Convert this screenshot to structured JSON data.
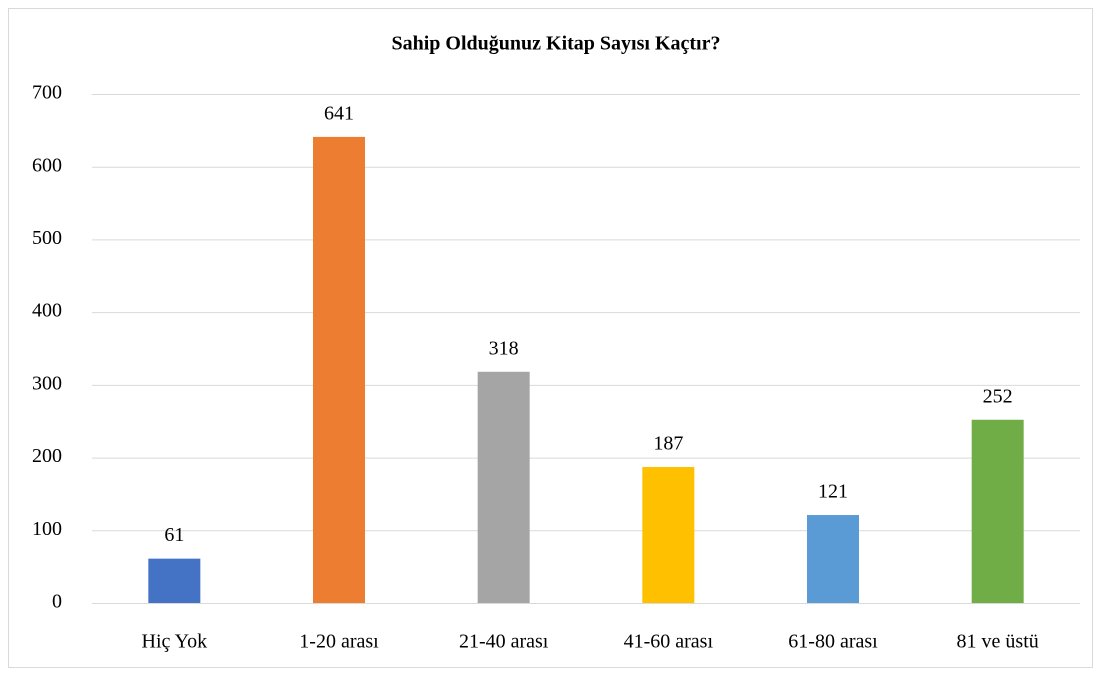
{
  "chart_data": {
    "type": "bar",
    "title": "Sahip Olduğunuz Kitap Sayısı Kaçtır?",
    "categories": [
      "Hiç Yok",
      "1-20 arası",
      "21-40 arası",
      "41-60 arası",
      "61-80 arası",
      "81 ve üstü"
    ],
    "values": [
      61,
      641,
      318,
      187,
      121,
      252
    ],
    "colors": [
      "#4472c4",
      "#ed7d31",
      "#a5a5a5",
      "#ffc000",
      "#5b9bd5",
      "#70ad47"
    ],
    "ylim": [
      0,
      700
    ],
    "yticks": [
      0,
      100,
      200,
      300,
      400,
      500,
      600,
      700
    ],
    "grid": true
  }
}
